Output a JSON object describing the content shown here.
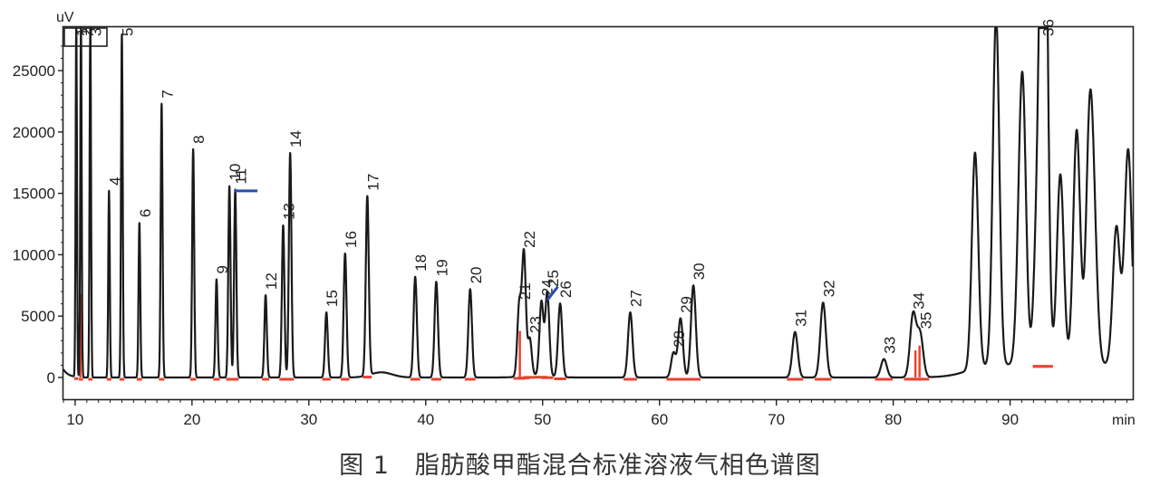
{
  "caption": "图 1　脂肪酸甲酯混合标准溶液气相色谱图",
  "chart_data": {
    "type": "line",
    "title": "",
    "xlabel": "min",
    "ylabel": "uV",
    "xlim": [
      9,
      100.5
    ],
    "ylim": [
      -1800,
      28500
    ],
    "x_ticks": [
      10,
      20,
      30,
      40,
      50,
      60,
      70,
      80,
      90
    ],
    "y_ticks": [
      0,
      5000,
      10000,
      15000,
      20000,
      25000
    ],
    "grid": false,
    "colors": {
      "trace": "#1a1a1a",
      "baseline": "#e8432f",
      "marker": "#2a4db0"
    },
    "peaks": [
      {
        "label": "1",
        "rt": 10.1,
        "height": 28500
      },
      {
        "label": "2",
        "rt": 10.5,
        "height": 28500
      },
      {
        "label": "3",
        "rt": 11.3,
        "height": 28500
      },
      {
        "label": "4",
        "rt": 12.9,
        "height": 15200
      },
      {
        "label": "5",
        "rt": 14.0,
        "height": 28000
      },
      {
        "label": "6",
        "rt": 15.5,
        "height": 12600
      },
      {
        "label": "7",
        "rt": 17.4,
        "height": 22300
      },
      {
        "label": "8",
        "rt": 20.1,
        "height": 18600
      },
      {
        "label": "9",
        "rt": 22.1,
        "height": 8000
      },
      {
        "label": "10",
        "rt": 23.2,
        "height": 15600
      },
      {
        "label": "11",
        "rt": 23.7,
        "height": 15300
      },
      {
        "label": "12",
        "rt": 26.3,
        "height": 6700
      },
      {
        "label": "13",
        "rt": 27.8,
        "height": 12400
      },
      {
        "label": "14",
        "rt": 28.4,
        "height": 18300
      },
      {
        "label": "15",
        "rt": 31.5,
        "height": 5300
      },
      {
        "label": "16",
        "rt": 33.1,
        "height": 10100
      },
      {
        "label": "17",
        "rt": 35.0,
        "height": 14600
      },
      {
        "label": "18",
        "rt": 39.1,
        "height": 8200
      },
      {
        "label": "19",
        "rt": 40.9,
        "height": 7800
      },
      {
        "label": "20",
        "rt": 43.8,
        "height": 7200
      },
      {
        "label": "21",
        "rt": 48.0,
        "height": 5800
      },
      {
        "label": "22",
        "rt": 48.4,
        "height": 10000
      },
      {
        "label": "23",
        "rt": 48.9,
        "height": 3000
      },
      {
        "label": "24",
        "rt": 49.9,
        "height": 6000
      },
      {
        "label": "25",
        "rt": 50.4,
        "height": 6800
      },
      {
        "label": "26",
        "rt": 51.5,
        "height": 6000
      },
      {
        "label": "27",
        "rt": 57.5,
        "height": 5300
      },
      {
        "label": "28",
        "rt": 61.2,
        "height": 2000
      },
      {
        "label": "29",
        "rt": 61.8,
        "height": 4800
      },
      {
        "label": "30",
        "rt": 62.9,
        "height": 7500
      },
      {
        "label": "31",
        "rt": 71.6,
        "height": 3700
      },
      {
        "label": "32",
        "rt": 74.0,
        "height": 6100
      },
      {
        "label": "33",
        "rt": 79.2,
        "height": 1500
      },
      {
        "label": "34",
        "rt": 81.7,
        "height": 5100
      },
      {
        "label": "35",
        "rt": 82.3,
        "height": 3500
      },
      {
        "label": "36",
        "rt": 92.8,
        "height": 27000
      }
    ],
    "unlabeled_peaks": [
      {
        "rt": 87.0,
        "height": 17600
      },
      {
        "rt": 88.8,
        "height": 28500
      },
      {
        "rt": 90.8,
        "height": 7000
      },
      {
        "rt": 91.1,
        "height": 19400
      },
      {
        "rt": 92.3,
        "height": 9600
      },
      {
        "rt": 92.95,
        "height": 27800
      },
      {
        "rt": 94.3,
        "height": 15500
      },
      {
        "rt": 95.7,
        "height": 19100
      },
      {
        "rt": 96.8,
        "height": 18500
      },
      {
        "rt": 97.2,
        "height": 8000
      },
      {
        "rt": 99.1,
        "height": 11200
      },
      {
        "rt": 100.1,
        "height": 17500
      }
    ]
  }
}
